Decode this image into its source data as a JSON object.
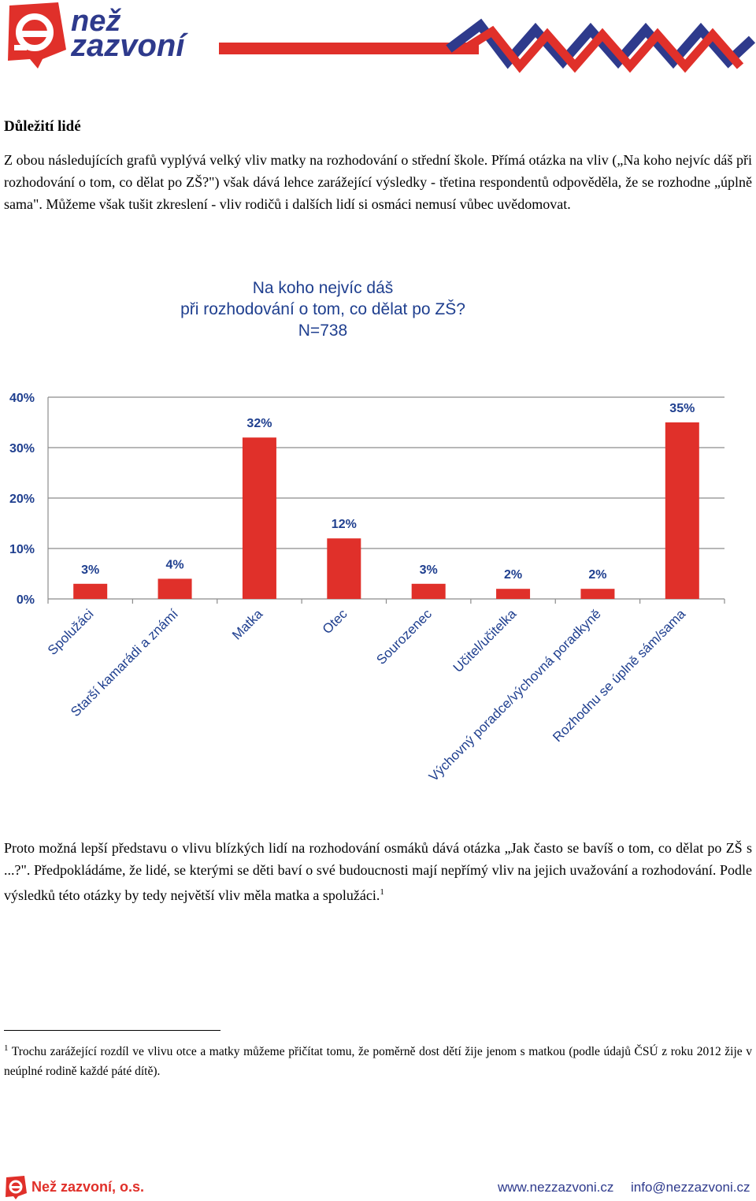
{
  "header": {
    "logo_line1": "než",
    "logo_line2": "zazvoní",
    "colors": {
      "red": "#e0302a",
      "blue": "#2e3a8c"
    }
  },
  "section_heading": "Důležití lidé",
  "intro_paragraph": "Z obou následujících grafů vyplývá velký vliv matky na rozhodování o střední škole. Přímá otázka na vliv („Na koho nejvíc dáš při rozhodování o tom, co dělat po ZŠ?\") však dává lehce zarážející výsledky - třetina respondentů odpověděla, že se rozhodne „úplně sama\". Můžeme však tušit zkreslení - vliv rodičů i dalších lidí si osmáci nemusí vůbec uvědomovat.",
  "chart_data": {
    "type": "bar",
    "title_line1": "Na koho nejvíc dáš",
    "title_line2": "při rozhodování o tom, co dělat po ZŠ?",
    "title_line3": "N=738",
    "categories": [
      "Spolužáci",
      "Starší kamarádi a známí",
      "Matka",
      "Otec",
      "Sourozenec",
      "Učitel/učitelka",
      "Výchovný poradce/výchovná poradkyně",
      "Rozhodnu se úplně sám/sama"
    ],
    "values": [
      3,
      4,
      32,
      12,
      3,
      2,
      2,
      35
    ],
    "value_labels": [
      "3%",
      "4%",
      "32%",
      "12%",
      "3%",
      "2%",
      "2%",
      "35%"
    ],
    "y_ticks": [
      0,
      10,
      20,
      30,
      40
    ],
    "y_tick_labels": [
      "0%",
      "10%",
      "20%",
      "30%",
      "40%"
    ],
    "ylim": [
      0,
      40
    ],
    "grid": true,
    "bar_color": "#e0302a"
  },
  "second_paragraph": "Proto možná lepší představu o vlivu blízkých lidí na rozhodování osmáků dává otázka „Jak často se bavíš o tom, co dělat po ZŠ s ...?\". Předpokládáme, že lidé, se kterými se děti baví o své budoucnosti mají nepřímý vliv na jejich uvažování a rozhodování. Podle výsledků této otázky by tedy největší vliv měla matka a spolužáci.",
  "footnote_marker": "1",
  "footnote_text": "Trochu zarážející rozdíl ve vlivu otce a matky můžeme přičítat tomu, že poměrně dost dětí žije jenom s matkou (podle údajů ČSÚ z roku 2012 žije v neúplné rodině každé páté dítě).",
  "footer": {
    "org": "Než zazvoní, o.s.",
    "website": "www.nezzazvoni.cz",
    "email": "info@nezzazvoni.cz"
  }
}
